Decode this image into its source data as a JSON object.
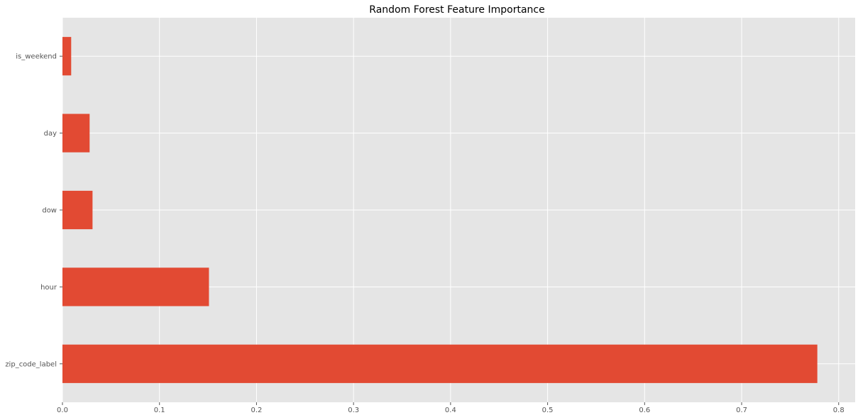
{
  "chart_data": {
    "type": "bar",
    "orientation": "horizontal",
    "title": "Random Forest Feature Importance",
    "xlabel": "",
    "ylabel": "",
    "categories": [
      "zip_code_label",
      "hour",
      "dow",
      "day",
      "is_weekend"
    ],
    "values": [
      0.778,
      0.151,
      0.031,
      0.028,
      0.009
    ],
    "xlim": [
      0,
      0.817
    ],
    "xticks": [
      0.0,
      0.1,
      0.2,
      0.3,
      0.4,
      0.5,
      0.6,
      0.7,
      0.8
    ],
    "xtick_labels": [
      "0.0",
      "0.1",
      "0.2",
      "0.3",
      "0.4",
      "0.5",
      "0.6",
      "0.7",
      "0.8"
    ],
    "grid": true,
    "legend": "none",
    "colors": {
      "bar": "#E24A33",
      "plot_background": "#E5E5E5",
      "grid": "#FFFFFF"
    }
  }
}
